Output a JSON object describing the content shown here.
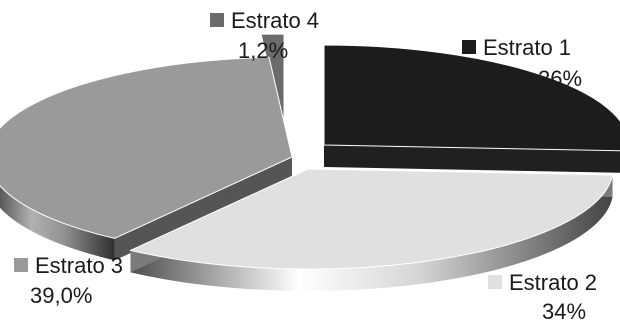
{
  "chart_data": {
    "type": "pie",
    "style": "3d-exploded",
    "title": "",
    "slices": [
      {
        "name": "Estrato 1",
        "value": 26,
        "label": "26%",
        "color": "#1c1c1c"
      },
      {
        "name": "Estrato 2",
        "value": 34,
        "label": "34%",
        "color": "#e0e0e0"
      },
      {
        "name": "Estrato 3",
        "value": 39.0,
        "label": "39,0%",
        "color": "#9a9a9a"
      },
      {
        "name": "Estrato 4",
        "value": 1.2,
        "label": "1,2%",
        "color": "#6b6b6b"
      }
    ],
    "legend": "labels-beside-slices"
  }
}
